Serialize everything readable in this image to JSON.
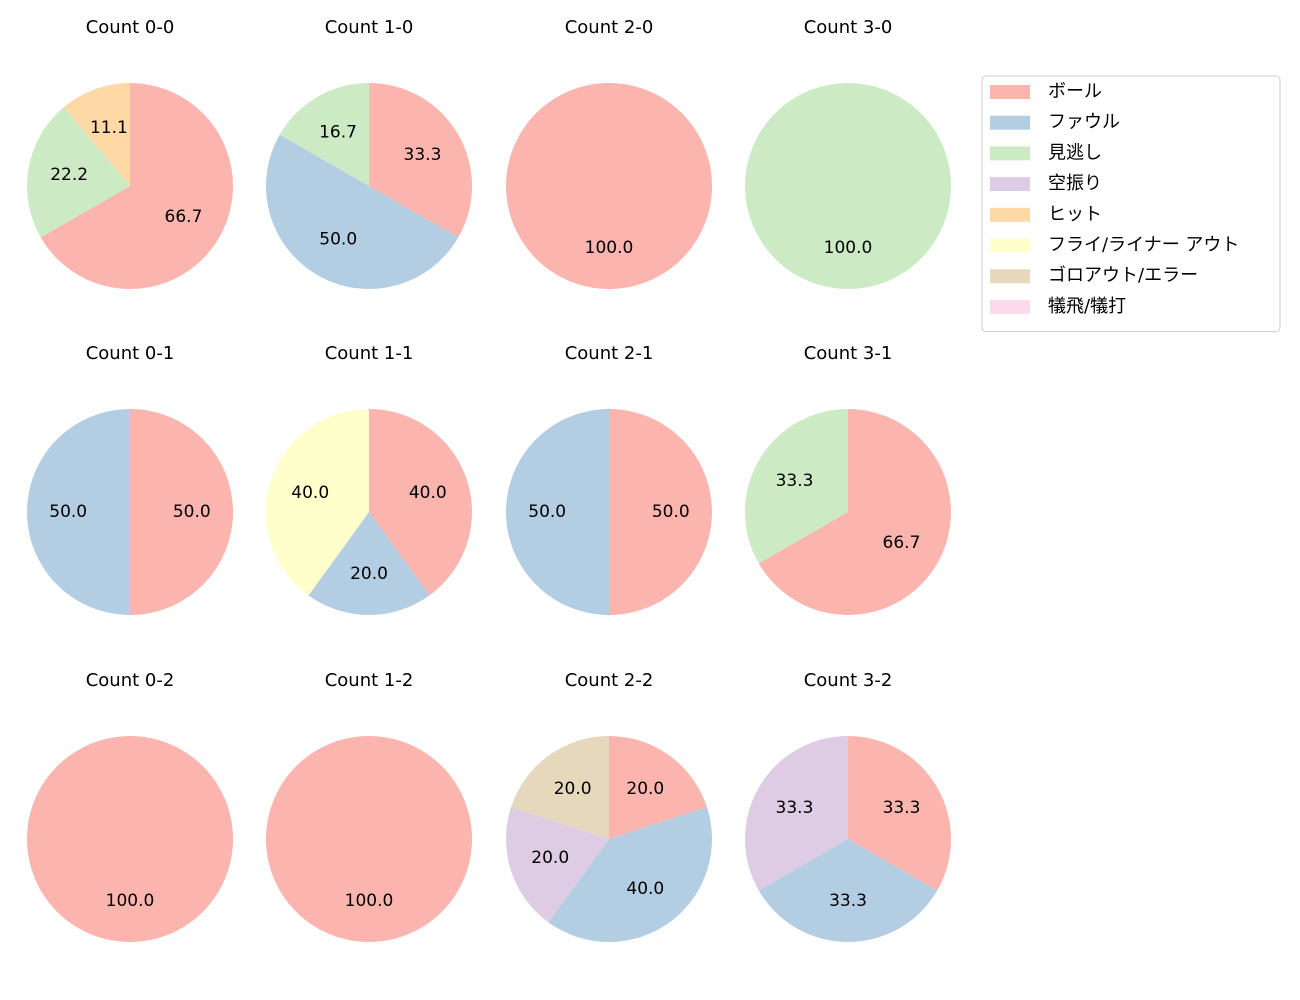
{
  "chart_data": [
    {
      "type": "pie",
      "title": "Count 0-0",
      "values": [
        66.7,
        null,
        22.2,
        null,
        11.1,
        null,
        null,
        null
      ],
      "value_labels": [
        "66.7",
        null,
        "22.2",
        null,
        "11.1",
        null,
        null,
        null
      ]
    },
    {
      "type": "pie",
      "title": "Count 1-0",
      "values": [
        33.3,
        50.0,
        16.7,
        null,
        null,
        null,
        null,
        null
      ],
      "value_labels": [
        "33.3",
        "50.0",
        "16.7",
        null,
        null,
        null,
        null,
        null
      ]
    },
    {
      "type": "pie",
      "title": "Count 2-0",
      "values": [
        100.0,
        null,
        null,
        null,
        null,
        null,
        null,
        null
      ],
      "value_labels": [
        "100.0",
        null,
        null,
        null,
        null,
        null,
        null,
        null
      ]
    },
    {
      "type": "pie",
      "title": "Count 3-0",
      "values": [
        null,
        null,
        100.0,
        null,
        null,
        null,
        null,
        null
      ],
      "value_labels": [
        null,
        null,
        "100.0",
        null,
        null,
        null,
        null,
        null
      ]
    },
    {
      "type": "pie",
      "title": "Count 0-1",
      "values": [
        50.0,
        50.0,
        null,
        null,
        null,
        null,
        null,
        null
      ],
      "value_labels": [
        "50.0",
        "50.0",
        null,
        null,
        null,
        null,
        null,
        null
      ]
    },
    {
      "type": "pie",
      "title": "Count 1-1",
      "values": [
        40.0,
        20.0,
        null,
        null,
        null,
        40.0,
        null,
        null
      ],
      "value_labels": [
        "40.0",
        "20.0",
        null,
        null,
        null,
        "40.0",
        null,
        null
      ]
    },
    {
      "type": "pie",
      "title": "Count 2-1",
      "values": [
        50.0,
        50.0,
        null,
        null,
        null,
        null,
        null,
        null
      ],
      "value_labels": [
        "50.0",
        "50.0",
        null,
        null,
        null,
        null,
        null,
        null
      ]
    },
    {
      "type": "pie",
      "title": "Count 3-1",
      "values": [
        66.7,
        null,
        33.3,
        null,
        null,
        null,
        null,
        null
      ],
      "value_labels": [
        "66.7",
        null,
        "33.3",
        null,
        null,
        null,
        null,
        null
      ]
    },
    {
      "type": "pie",
      "title": "Count 0-2",
      "values": [
        100.0,
        null,
        null,
        null,
        null,
        null,
        null,
        null
      ],
      "value_labels": [
        "100.0",
        null,
        null,
        null,
        null,
        null,
        null,
        null
      ]
    },
    {
      "type": "pie",
      "title": "Count 1-2",
      "values": [
        100.0,
        null,
        null,
        null,
        null,
        null,
        null,
        null
      ],
      "value_labels": [
        "100.0",
        null,
        null,
        null,
        null,
        null,
        null,
        null
      ]
    },
    {
      "type": "pie",
      "title": "Count 2-2",
      "values": [
        20.0,
        40.0,
        null,
        20.0,
        null,
        null,
        20.0,
        null
      ],
      "value_labels": [
        "20.0",
        "40.0",
        null,
        "20.0",
        null,
        null,
        "20.0",
        null
      ]
    },
    {
      "type": "pie",
      "title": "Count 3-2",
      "values": [
        33.3,
        33.3,
        null,
        33.3,
        null,
        null,
        null,
        null
      ],
      "value_labels": [
        "33.3",
        "33.3",
        null,
        "33.3",
        null,
        null,
        null,
        null
      ]
    }
  ],
  "legend": {
    "position": "upper right",
    "series": [
      {
        "name": "ボール",
        "color": "#fbb4ae"
      },
      {
        "name": "ファウル",
        "color": "#b3cde3"
      },
      {
        "name": "見逃し",
        "color": "#ccebc5"
      },
      {
        "name": "空振り",
        "color": "#decbe4"
      },
      {
        "name": "ヒット",
        "color": "#fed9a6"
      },
      {
        "name": "フライ/ライナー アウト",
        "color": "#ffffcc"
      },
      {
        "name": "ゴロアウト/エラー",
        "color": "#e5d8bd"
      },
      {
        "name": "犠飛/犠打",
        "color": "#fddaec"
      }
    ]
  }
}
